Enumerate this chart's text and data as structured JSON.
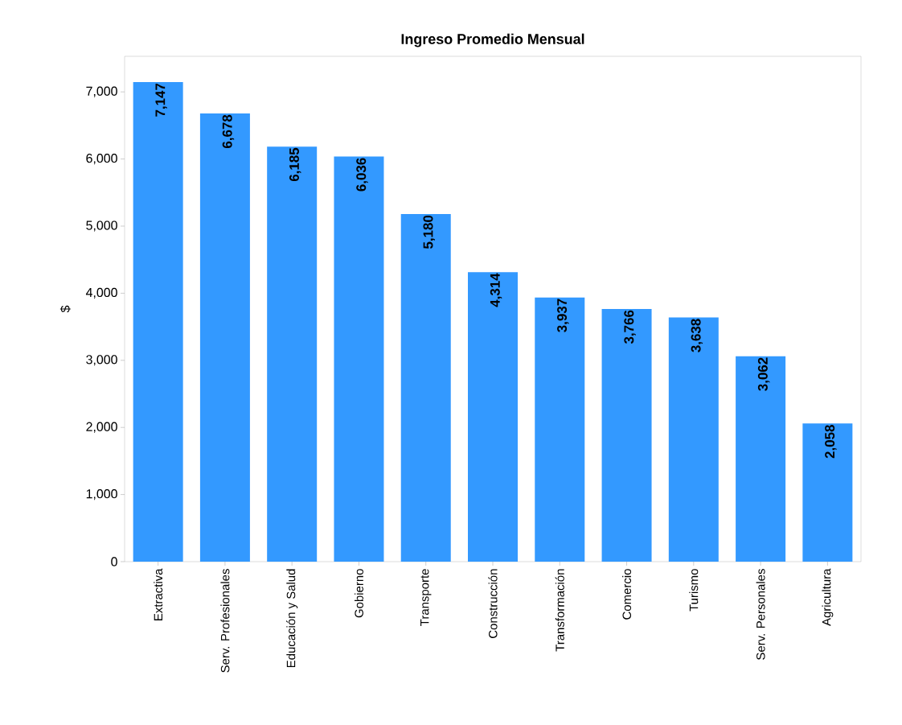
{
  "chart_data": {
    "type": "bar",
    "title": "Ingreso Promedio Mensual",
    "ylabel": "$",
    "categories": [
      "Extractiva",
      "Serv. Profesionales",
      "Educación y Salud",
      "Gobierno",
      "Transporte",
      "Construcción",
      "Transformación",
      "Comercio",
      "Turismo",
      "Serv. Personales",
      "Agricultura"
    ],
    "values": [
      7147,
      6678,
      6185,
      6036,
      5180,
      4314,
      3937,
      3766,
      3638,
      3062,
      2058
    ],
    "value_labels": [
      "7,147",
      "6,678",
      "6,185",
      "6,036",
      "5,180",
      "4,314",
      "3,937",
      "3,766",
      "3,638",
      "3,062",
      "2,058"
    ],
    "color": "#3399ff",
    "ylim": [
      0,
      7530
    ],
    "yticks": [
      0,
      {
        "value": 1000,
        "label": "1,000"
      },
      {
        "value": 2000,
        "label": "2,000"
      },
      {
        "value": 3000,
        "label": "3,000"
      },
      {
        "value": 4000,
        "label": "4,000"
      },
      {
        "value": 5000,
        "label": "5,000"
      },
      {
        "value": 6000,
        "label": "6,000"
      },
      {
        "value": 7000,
        "label": "7,000"
      }
    ]
  }
}
